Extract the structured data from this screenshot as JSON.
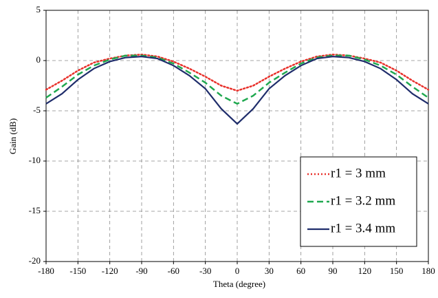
{
  "chart_data": {
    "type": "line",
    "xlabel": "Theta (degree)",
    "ylabel": "Gain (dB)",
    "x": [
      -180,
      -165,
      -150,
      -135,
      -120,
      -105,
      -90,
      -75,
      -60,
      -45,
      -30,
      -15,
      0,
      15,
      30,
      45,
      60,
      75,
      90,
      105,
      120,
      135,
      150,
      165,
      180
    ],
    "series": [
      {
        "name": "r1 = 3 mm",
        "color": "#e8302a",
        "style": "dotted",
        "values": [
          -2.9,
          -2.0,
          -1.0,
          -0.2,
          0.2,
          0.5,
          0.6,
          0.4,
          -0.1,
          -0.8,
          -1.6,
          -2.5,
          -3.0,
          -2.5,
          -1.6,
          -0.8,
          -0.1,
          0.4,
          0.6,
          0.5,
          0.2,
          -0.2,
          -1.0,
          -2.0,
          -2.9
        ]
      },
      {
        "name": "r1 = 3.2 mm",
        "color": "#1fa84f",
        "style": "dashed",
        "values": [
          -3.7,
          -2.6,
          -1.4,
          -0.5,
          0.1,
          0.5,
          0.5,
          0.3,
          -0.3,
          -1.2,
          -2.2,
          -3.5,
          -4.3,
          -3.5,
          -2.2,
          -1.2,
          -0.3,
          0.3,
          0.5,
          0.5,
          0.1,
          -0.5,
          -1.4,
          -2.6,
          -3.7
        ]
      },
      {
        "name": "r1 = 3.4 mm",
        "color": "#1f2d6b",
        "style": "solid",
        "values": [
          -4.3,
          -3.3,
          -1.9,
          -0.8,
          -0.1,
          0.3,
          0.4,
          0.2,
          -0.5,
          -1.5,
          -2.8,
          -4.8,
          -6.3,
          -4.8,
          -2.8,
          -1.5,
          -0.5,
          0.2,
          0.4,
          0.3,
          -0.1,
          -0.8,
          -1.9,
          -3.3,
          -4.3
        ]
      }
    ],
    "xlim": [
      -180,
      180
    ],
    "xticks": [
      -180,
      -150,
      -120,
      -90,
      -60,
      -30,
      0,
      30,
      60,
      90,
      120,
      150,
      180
    ],
    "ylim": [
      -20,
      5
    ],
    "yticks": [
      -20,
      -15,
      -10,
      -5,
      0,
      5
    ],
    "grid": true,
    "legend": "lower-right"
  }
}
